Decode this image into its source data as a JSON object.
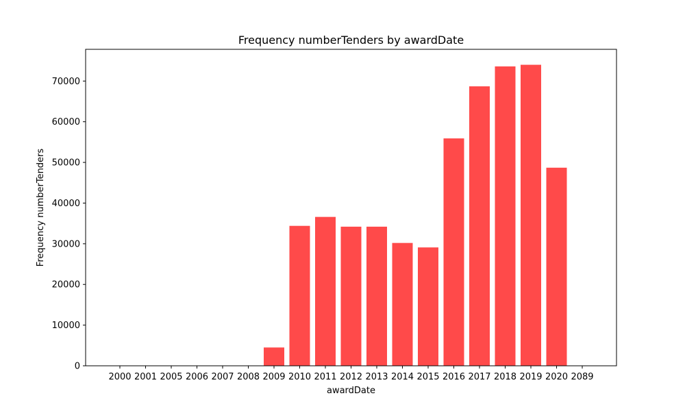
{
  "chart_data": {
    "type": "bar",
    "title": "Frequency numberTenders by awardDate",
    "xlabel": "awardDate",
    "ylabel": "Frequency numberTenders",
    "categories": [
      "2000",
      "2001",
      "2005",
      "2006",
      "2007",
      "2008",
      "2009",
      "2010",
      "2011",
      "2012",
      "2013",
      "2014",
      "2015",
      "2016",
      "2017",
      "2018",
      "2019",
      "2020",
      "2089"
    ],
    "values": [
      1,
      1,
      1,
      1,
      1,
      1,
      4500,
      34400,
      36600,
      34200,
      34200,
      30200,
      29100,
      55900,
      68700,
      73600,
      74000,
      48700,
      1
    ],
    "ylim": [
      0,
      77800
    ],
    "yticks": [
      0,
      10000,
      20000,
      30000,
      40000,
      50000,
      60000,
      70000
    ],
    "bar_color": "#ff4a4a",
    "grid": false,
    "legend": "none"
  }
}
